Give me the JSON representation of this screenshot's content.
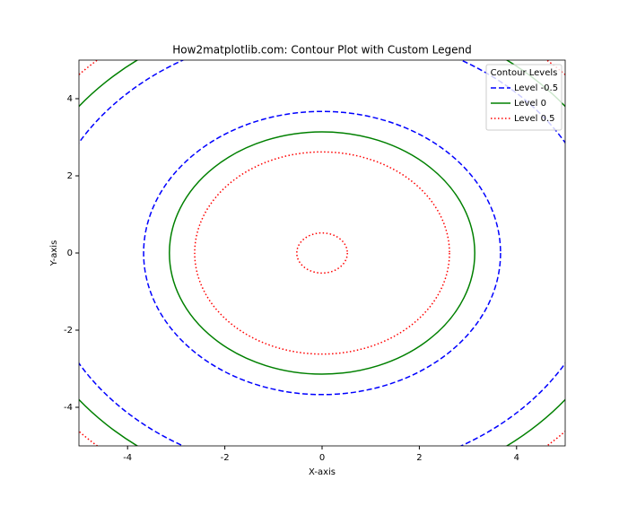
{
  "chart_data": {
    "type": "contour",
    "title": "How2matplotlib.com: Contour Plot with Custom Legend",
    "x_label": "X-axis",
    "y_label": "Y-axis",
    "xlim": [
      -5,
      5
    ],
    "ylim": [
      -5,
      5
    ],
    "xticks": [
      -4,
      -2,
      0,
      2,
      4
    ],
    "yticks": [
      -4,
      -2,
      0,
      2,
      4
    ],
    "legend_title": "Contour Levels",
    "legend_position": "upper right",
    "series": [
      {
        "name": "Level -0.5",
        "color": "#0000ff",
        "linestyle": "dashed",
        "radii": [
          3.67,
          5.76
        ]
      },
      {
        "name": "Level 0",
        "color": "#008000",
        "linestyle": "solid",
        "radii": [
          3.14,
          6.28
        ]
      },
      {
        "name": "Level 0.5",
        "color": "#ff0000",
        "linestyle": "dotted",
        "radii": [
          0.52,
          2.62,
          6.81
        ]
      }
    ]
  }
}
